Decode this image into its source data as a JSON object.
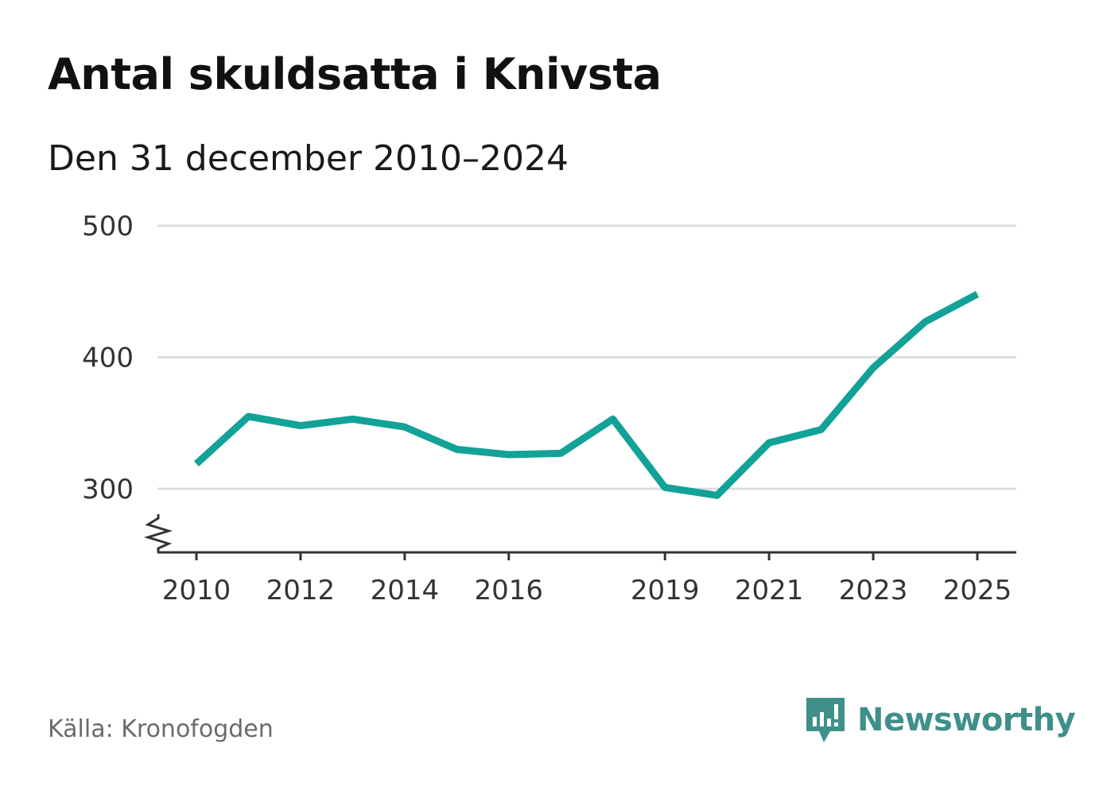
{
  "chart_data": {
    "type": "line",
    "title": "Antal skuldsatta i Knivsta",
    "subtitle": "Den 31 december 2010–2024",
    "xlabel": "",
    "ylabel": "",
    "x": [
      2010,
      2011,
      2012,
      2013,
      2014,
      2015,
      2016,
      2017,
      2018,
      2019,
      2020,
      2021,
      2022,
      2023,
      2024,
      2025
    ],
    "series": [
      {
        "name": "Antal skuldsatta",
        "values": [
          319,
          355,
          348,
          353,
          347,
          330,
          326,
          327,
          353,
          301,
          295,
          335,
          345,
          392,
          427,
          448
        ]
      }
    ],
    "y_ticks": [
      300,
      400,
      500
    ],
    "y_tick_labels": [
      "300",
      "400",
      "500"
    ],
    "x_ticks": [
      2010,
      2012,
      2014,
      2016,
      2019,
      2021,
      2023,
      2025
    ],
    "x_tick_labels": [
      "2010",
      "2012",
      "2014",
      "2016",
      "2019",
      "2021",
      "2023",
      "2025"
    ],
    "ylim": [
      250,
      500
    ],
    "xlim": [
      2010,
      2025
    ],
    "grid": true,
    "y_axis_break": true,
    "line_color": "#12a297"
  },
  "footer": {
    "source": "Källa: Kronofogden",
    "brand": "Newsworthy",
    "brand_color": "#3f8f8a"
  }
}
